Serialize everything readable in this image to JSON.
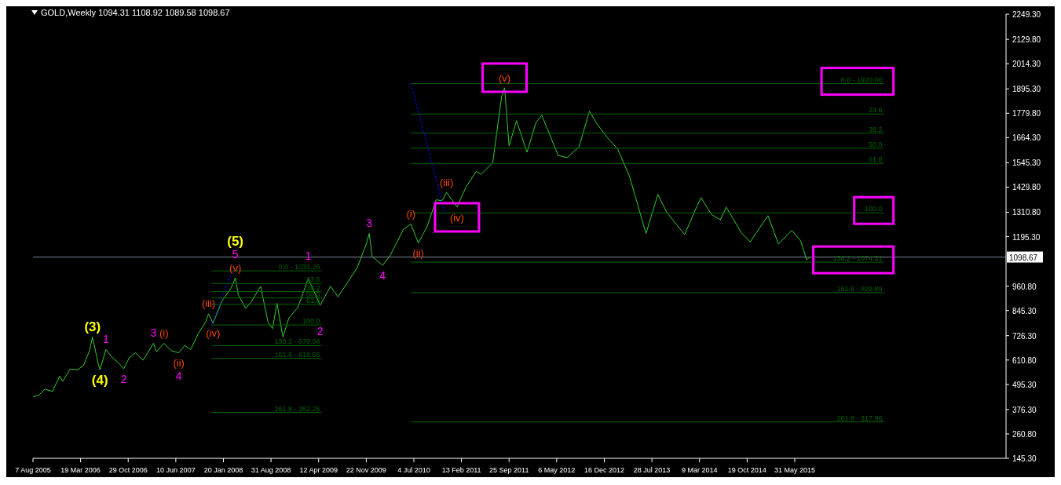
{
  "chart_data": {
    "type": "line",
    "title": "GOLD,Weekly  1094.31 1108.92 1089.58 1098.67",
    "marker": "none",
    "grid": false,
    "xlim": [
      "2005-08-07",
      "2018-02-18"
    ],
    "xticks": [
      {
        "value": "2005-08-07",
        "label": "7 Aug 2005"
      },
      {
        "value": "2006-03-19",
        "label": "19 Mar 2006"
      },
      {
        "value": "2006-10-29",
        "label": "29 Oct 2006"
      },
      {
        "value": "2007-06-10",
        "label": "10 Jun 2007"
      },
      {
        "value": "2008-01-20",
        "label": "20 Jan 2008"
      },
      {
        "value": "2008-08-31",
        "label": "31 Aug 2008"
      },
      {
        "value": "2009-04-12",
        "label": "12 Apr 2009"
      },
      {
        "value": "2009-11-22",
        "label": "22 Nov 2009"
      },
      {
        "value": "2010-07-04",
        "label": "4 Jul 2010"
      },
      {
        "value": "2011-02-13",
        "label": "13 Feb 2011"
      },
      {
        "value": "2011-09-25",
        "label": "25 Sep 2011"
      },
      {
        "value": "2012-05-06",
        "label": "6 May 2012"
      },
      {
        "value": "2012-12-16",
        "label": "16 Dec 2012"
      },
      {
        "value": "2013-07-28",
        "label": "28 Jul 2013"
      },
      {
        "value": "2014-03-09",
        "label": "9 Mar 2014"
      },
      {
        "value": "2014-10-19",
        "label": "19 Oct 2014"
      },
      {
        "value": "2015-05-31",
        "label": "31 May 2015"
      }
    ],
    "ylim": [
      145.3,
      2249.3
    ],
    "yticks": [
      {
        "value": 145.3,
        "label": "145.30"
      },
      {
        "value": 260.8,
        "label": "260.80"
      },
      {
        "value": 376.3,
        "label": "376.30"
      },
      {
        "value": 495.3,
        "label": "495.30"
      },
      {
        "value": 610.8,
        "label": "610.80"
      },
      {
        "value": 726.3,
        "label": "726.30"
      },
      {
        "value": 845.3,
        "label": "845.30"
      },
      {
        "value": 960.8,
        "label": "960.80"
      },
      {
        "value": 1195.3,
        "label": "1195.30"
      },
      {
        "value": 1310.8,
        "label": "1310.80"
      },
      {
        "value": 1429.8,
        "label": "1429.80"
      },
      {
        "value": 1545.3,
        "label": "1545.30"
      },
      {
        "value": 1664.3,
        "label": "1664.30"
      },
      {
        "value": 1779.8,
        "label": "1779.80"
      },
      {
        "value": 1895.3,
        "label": "1895.30"
      },
      {
        "value": 2014.3,
        "label": "2014.30"
      },
      {
        "value": 2129.8,
        "label": "2129.80"
      },
      {
        "value": 2249.3,
        "label": "2249.30"
      }
    ],
    "ref_lines": [
      {
        "axis": "y",
        "value": 1098.67,
        "label": "1098.67",
        "color": "#778899"
      }
    ],
    "series": [
      {
        "color": "#32cd32",
        "x": [
          "2005-08-07",
          "2005-09-04",
          "2005-10-02",
          "2005-11-06",
          "2005-12-11",
          "2005-12-25",
          "2006-01-29",
          "2006-03-05",
          "2006-04-02",
          "2006-04-30",
          "2006-05-14",
          "2006-06-11",
          "2006-06-18",
          "2006-07-16",
          "2006-08-13",
          "2006-09-10",
          "2006-10-08",
          "2006-11-05",
          "2006-12-03",
          "2007-01-07",
          "2007-02-25",
          "2007-03-11",
          "2007-04-15",
          "2007-05-20",
          "2007-06-24",
          "2007-07-22",
          "2007-08-19",
          "2007-09-23",
          "2007-10-28",
          "2007-11-11",
          "2007-12-02",
          "2008-01-13",
          "2008-02-24",
          "2008-03-16",
          "2008-03-30",
          "2008-05-04",
          "2008-06-01",
          "2008-07-13",
          "2008-08-17",
          "2008-09-07",
          "2008-09-28",
          "2008-10-26",
          "2008-11-23",
          "2009-01-04",
          "2009-02-22",
          "2009-03-29",
          "2009-04-19",
          "2009-06-07",
          "2009-07-12",
          "2009-09-06",
          "2009-10-11",
          "2009-11-22",
          "2009-12-06",
          "2009-12-20",
          "2010-02-07",
          "2010-03-14",
          "2010-05-16",
          "2010-06-20",
          "2010-07-25",
          "2010-09-05",
          "2010-10-17",
          "2010-11-14",
          "2010-12-05",
          "2011-01-23",
          "2011-03-06",
          "2011-04-24",
          "2011-05-15",
          "2011-07-10",
          "2011-08-21",
          "2011-09-04",
          "2011-09-25",
          "2011-10-30",
          "2011-12-18",
          "2012-01-29",
          "2012-02-26",
          "2012-05-13",
          "2012-06-24",
          "2012-08-19",
          "2012-10-07",
          "2012-11-11",
          "2012-12-30",
          "2013-02-17",
          "2013-04-14",
          "2013-06-30",
          "2013-08-25",
          "2013-10-06",
          "2013-12-29",
          "2014-02-16",
          "2014-03-16",
          "2014-05-04",
          "2014-06-15",
          "2014-07-13",
          "2014-09-21",
          "2014-11-02",
          "2015-01-25",
          "2015-03-15",
          "2015-05-17",
          "2015-06-28",
          "2015-07-26",
          "2015-08-09"
        ],
        "values": [
          437,
          445,
          473,
          462,
          535,
          510,
          568,
          565,
          585,
          655,
          720,
          590,
          565,
          660,
          625,
          600,
          570,
          625,
          645,
          610,
          690,
          650,
          690,
          655,
          645,
          680,
          660,
          735,
          790,
          830,
          785,
          890,
          950,
          1000,
          920,
          855,
          890,
          960,
          790,
          760,
          880,
          720,
          810,
          860,
          995,
          920,
          870,
          960,
          910,
          995,
          1050,
          1160,
          1210,
          1100,
          1060,
          1105,
          1230,
          1255,
          1165,
          1245,
          1370,
          1365,
          1405,
          1335,
          1430,
          1505,
          1490,
          1545,
          1860,
          1900,
          1625,
          1745,
          1595,
          1735,
          1770,
          1580,
          1570,
          1620,
          1790,
          1730,
          1665,
          1610,
          1480,
          1210,
          1395,
          1310,
          1205,
          1320,
          1380,
          1300,
          1275,
          1335,
          1215,
          1170,
          1295,
          1160,
          1225,
          1175,
          1085,
          1098.67
        ]
      },
      {
        "color": "#0000ff",
        "line_style": "dotted",
        "x": [
          "2007-11-25",
          "2008-03-02"
        ],
        "values": [
          777,
          1033
        ]
      },
      {
        "color": "#0000ff",
        "line_style": "dotted",
        "x": [
          "2010-06-20",
          "2010-11-28"
        ],
        "values": [
          1920,
          1308
        ]
      },
      {
        "name": "0.0 - 1033.26",
        "color": "#006400",
        "x": [
          "2007-11-25",
          "2009-04-26"
        ],
        "values": [
          1033.26,
          1033.26
        ]
      },
      {
        "name": "23.6",
        "color": "#006400",
        "x": [
          "2007-11-25",
          "2009-04-26"
        ],
        "values": [
          973,
          973
        ]
      },
      {
        "name": "38.2",
        "color": "#006400",
        "x": [
          "2007-11-25",
          "2009-04-26"
        ],
        "values": [
          935,
          935
        ]
      },
      {
        "name": "50.0",
        "color": "#006400",
        "x": [
          "2007-11-25",
          "2009-04-26"
        ],
        "values": [
          905,
          905
        ]
      },
      {
        "name": "61.8",
        "color": "#006400",
        "x": [
          "2007-11-25",
          "2009-04-26"
        ],
        "values": [
          875,
          875
        ]
      },
      {
        "name": "100.0",
        "color": "#006400",
        "x": [
          "2007-11-25",
          "2009-04-26"
        ],
        "values": [
          777,
          777
        ]
      },
      {
        "name": "138.2 - 679.04",
        "color": "#006400",
        "x": [
          "2007-11-25",
          "2009-04-26"
        ],
        "values": [
          679.04,
          679.04
        ]
      },
      {
        "name": "161.8 - 618.55",
        "color": "#006400",
        "x": [
          "2007-11-25",
          "2009-04-26"
        ],
        "values": [
          618.55,
          618.55
        ]
      },
      {
        "name": "261.8 - 362.25",
        "color": "#006400",
        "x": [
          "2007-11-25",
          "2009-04-26"
        ],
        "values": [
          362.25,
          362.25
        ]
      },
      {
        "name": "0.0 - 1920.00",
        "color": "#006400",
        "x": [
          "2010-06-20",
          "2016-07-24"
        ],
        "values": [
          1920,
          1920
        ]
      },
      {
        "name": "23.6",
        "color": "#006400",
        "x": [
          "2010-06-20",
          "2016-07-24"
        ],
        "values": [
          1776,
          1776
        ]
      },
      {
        "name": "38.2",
        "color": "#006400",
        "x": [
          "2010-06-20",
          "2016-07-24"
        ],
        "values": [
          1686,
          1686
        ]
      },
      {
        "name": "50.0",
        "color": "#006400",
        "x": [
          "2010-06-20",
          "2016-07-24"
        ],
        "values": [
          1614,
          1614
        ]
      },
      {
        "name": "61.8",
        "color": "#006400",
        "x": [
          "2010-06-20",
          "2016-07-24"
        ],
        "values": [
          1542,
          1542
        ]
      },
      {
        "name": "100.0",
        "color": "#006400",
        "x": [
          "2010-06-20",
          "2016-07-24"
        ],
        "values": [
          1308,
          1308
        ]
      },
      {
        "name": "138.2 - 1074.31",
        "color": "#006400",
        "x": [
          "2010-06-20",
          "2016-07-24"
        ],
        "values": [
          1074.31,
          1074.31
        ]
      },
      {
        "name": "161.8 - 929.89",
        "color": "#006400",
        "x": [
          "2010-06-20",
          "2016-07-24"
        ],
        "values": [
          929.89,
          929.89
        ]
      },
      {
        "name": "261.8 - 317.96",
        "color": "#006400",
        "x": [
          "2010-06-20",
          "2016-07-24"
        ],
        "values": [
          317.96,
          317.96
        ]
      }
    ],
    "annotations": [
      {
        "text": "(3)",
        "x": "2006-05-14",
        "y": 720
      },
      {
        "text": "(4)",
        "x": "2006-06-18",
        "y": 565
      },
      {
        "text": "1",
        "x": "2006-07-16",
        "y": 660
      },
      {
        "text": "2",
        "x": "2006-10-08",
        "y": 570
      },
      {
        "text": "3",
        "x": "2007-02-25",
        "y": 690
      },
      {
        "text": "(i)",
        "x": "2007-04-15",
        "y": 690
      },
      {
        "text": "(ii)",
        "x": "2007-06-24",
        "y": 645
      },
      {
        "text": "4",
        "x": "2007-06-24",
        "y": 645
      },
      {
        "text": "(iii)",
        "x": "2007-11-11",
        "y": 830
      },
      {
        "text": "(iv)",
        "x": "2007-12-02",
        "y": 785
      },
      {
        "text": "(v)",
        "x": "2008-03-16",
        "y": 1000
      },
      {
        "text": "5",
        "x": "2008-03-16",
        "y": 1000
      },
      {
        "text": "(5)",
        "x": "2008-03-16",
        "y": 1000
      },
      {
        "text": "1",
        "x": "2009-02-22",
        "y": 995
      },
      {
        "text": "2",
        "x": "2009-04-19",
        "y": 870
      },
      {
        "text": "3",
        "x": "2009-12-06",
        "y": 1210
      },
      {
        "text": "4",
        "x": "2010-02-07",
        "y": 1060
      },
      {
        "text": "(i)",
        "x": "2010-06-20",
        "y": 1255
      },
      {
        "text": "(ii)",
        "x": "2010-07-25",
        "y": 1165
      },
      {
        "text": "(iii)",
        "x": "2010-12-05",
        "y": 1405
      },
      {
        "text": "(iv)",
        "x": "2011-01-23",
        "y": 1335
      },
      {
        "text": "(v)",
        "x": "2011-09-04",
        "y": 1900
      }
    ]
  }
}
